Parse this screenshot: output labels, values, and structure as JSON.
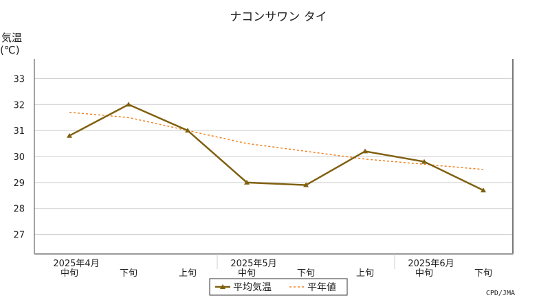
{
  "chart_data": {
    "type": "line",
    "title": "ナコンサワン タイ",
    "ylabel_line1": "気温",
    "ylabel_line2": "(℃)",
    "ylim": [
      26.25,
      33.75
    ],
    "yticks": [
      27,
      28,
      29,
      30,
      31,
      32,
      33
    ],
    "grid": true,
    "x_dekads": [
      "中旬",
      "下旬",
      "上旬",
      "中旬",
      "下旬",
      "上旬",
      "中旬",
      "下旬"
    ],
    "x_months": [
      "2025年4月",
      "2025年5月",
      "2025年6月"
    ],
    "series": [
      {
        "name": "平均気温",
        "style": "solid-triangle-markers",
        "color": "#806010",
        "values": [
          30.8,
          32.0,
          31.0,
          29.0,
          28.9,
          30.2,
          29.8,
          28.7
        ]
      },
      {
        "name": "平年値",
        "style": "dashed",
        "color": "#f08020",
        "values": [
          31.7,
          31.5,
          31.0,
          30.5,
          30.2,
          29.9,
          29.7,
          29.5
        ]
      }
    ],
    "legend_position": "bottom-center",
    "credit": "CPD/JMA"
  }
}
